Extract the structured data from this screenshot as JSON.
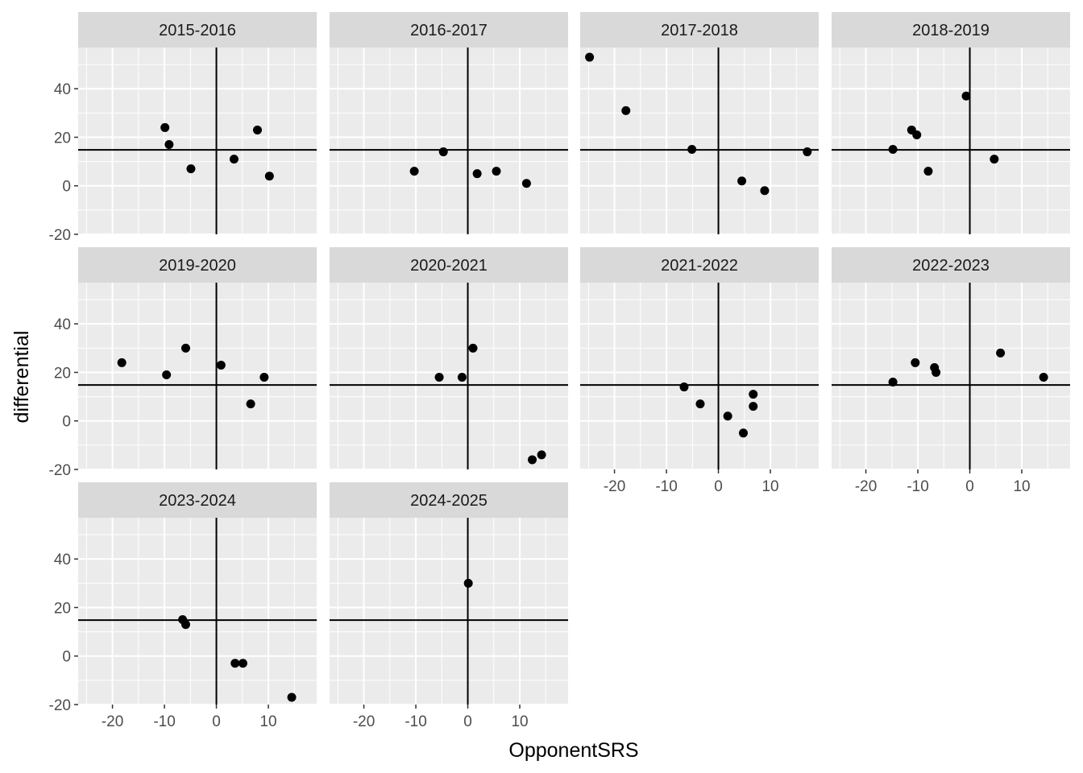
{
  "chart_data": {
    "type": "scatter",
    "layout": "facet_wrap",
    "xlabel": "OpponentSRS",
    "ylabel": "differential",
    "xlim": [
      -26.6,
      19.3
    ],
    "ylim": [
      -20,
      57
    ],
    "x_ticks": [
      -20,
      -10,
      0,
      10
    ],
    "x_tick_labels": [
      "-20",
      "-10",
      "0",
      "10"
    ],
    "y_ticks": [
      -20,
      0,
      20,
      40
    ],
    "y_tick_labels": [
      "-20",
      "0",
      "20",
      "40"
    ],
    "vline_x": 0,
    "hline_y": 14.8,
    "grid": true,
    "panel_background": "#ebebeb",
    "strip_background": "#d9d9d9",
    "point_color": "#000000",
    "facets": [
      {
        "label": "2015-2016",
        "points": [
          [
            -9.9,
            24
          ],
          [
            -9.1,
            17
          ],
          [
            -4.9,
            7
          ],
          [
            3.4,
            11
          ],
          [
            7.9,
            23
          ],
          [
            10.2,
            4
          ]
        ]
      },
      {
        "label": "2016-2017",
        "points": [
          [
            -10.3,
            6
          ],
          [
            -4.7,
            14
          ],
          [
            1.8,
            5
          ],
          [
            5.5,
            6
          ],
          [
            11.3,
            1
          ]
        ]
      },
      {
        "label": "2017-2018",
        "points": [
          [
            -24.8,
            53
          ],
          [
            -17.8,
            31
          ],
          [
            -5.1,
            15
          ],
          [
            4.5,
            2
          ],
          [
            8.9,
            -2
          ],
          [
            17.1,
            14
          ]
        ]
      },
      {
        "label": "2018-2019",
        "points": [
          [
            -14.8,
            15
          ],
          [
            -11.2,
            23
          ],
          [
            -10.2,
            21
          ],
          [
            -8.0,
            6
          ],
          [
            -0.7,
            37
          ],
          [
            4.7,
            11
          ]
        ]
      },
      {
        "label": "2019-2020",
        "points": [
          [
            -18.2,
            24
          ],
          [
            -9.6,
            19
          ],
          [
            -5.9,
            30
          ],
          [
            0.9,
            23
          ],
          [
            6.6,
            7
          ],
          [
            9.2,
            18
          ]
        ]
      },
      {
        "label": "2020-2021",
        "points": [
          [
            -5.5,
            18
          ],
          [
            -1.1,
            18
          ],
          [
            1.0,
            30
          ],
          [
            12.4,
            -16
          ],
          [
            14.2,
            -14
          ]
        ]
      },
      {
        "label": "2021-2022",
        "points": [
          [
            -6.6,
            14
          ],
          [
            -3.5,
            7
          ],
          [
            1.8,
            2
          ],
          [
            4.8,
            -5
          ],
          [
            6.7,
            11
          ],
          [
            6.7,
            6
          ]
        ]
      },
      {
        "label": "2022-2023",
        "points": [
          [
            -14.8,
            16
          ],
          [
            -10.5,
            24
          ],
          [
            -6.8,
            22
          ],
          [
            -6.5,
            20
          ],
          [
            5.9,
            28
          ],
          [
            14.2,
            18
          ]
        ]
      },
      {
        "label": "2023-2024",
        "points": [
          [
            -6.5,
            15
          ],
          [
            -5.9,
            13
          ],
          [
            3.6,
            -3
          ],
          [
            5.1,
            -3
          ],
          [
            14.5,
            -17
          ]
        ]
      },
      {
        "label": "2024-2025",
        "points": [
          [
            0.1,
            30
          ]
        ]
      }
    ]
  }
}
